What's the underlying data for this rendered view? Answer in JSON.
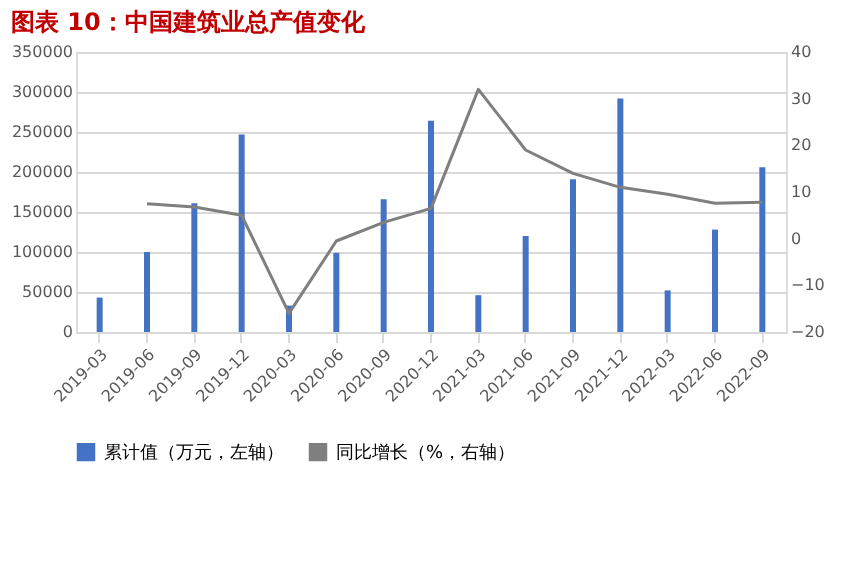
{
  "chart_data": {
    "type": "bar",
    "title": "图表 10：中国建筑业总产值变化",
    "categories": [
      "2019-03",
      "2019-06",
      "2019-09",
      "2019-12",
      "2020-03",
      "2020-06",
      "2020-09",
      "2020-12",
      "2021-03",
      "2021-06",
      "2021-09",
      "2021-12",
      "2022-03",
      "2022-06",
      "2022-09"
    ],
    "series": [
      {
        "name": "累计值（万元，左轴）",
        "color": "#4472c4",
        "values": [
          43000,
          100000,
          161000,
          247000,
          33000,
          99000,
          166000,
          264000,
          46000,
          120000,
          191000,
          292000,
          52000,
          128000,
          206000
        ]
      },
      {
        "name": "同比增长（%，右轴）",
        "color": "#7f7f7f",
        "type": "line",
        "axis": "y2",
        "values": [
          null,
          7.5,
          6.8,
          5,
          -16,
          -0.5,
          3.5,
          6.5,
          32,
          19,
          14,
          11,
          9.5,
          7.6,
          7.8
        ]
      }
    ],
    "ylim": [
      0,
      350000
    ],
    "yticks": [
      0,
      50000,
      100000,
      150000,
      200000,
      250000,
      300000,
      350000
    ],
    "y2lim": [
      -20,
      40
    ],
    "y2ticks": [
      -20,
      -10,
      0,
      10,
      20,
      30,
      40
    ],
    "grid": "y",
    "legend": "bottom"
  }
}
